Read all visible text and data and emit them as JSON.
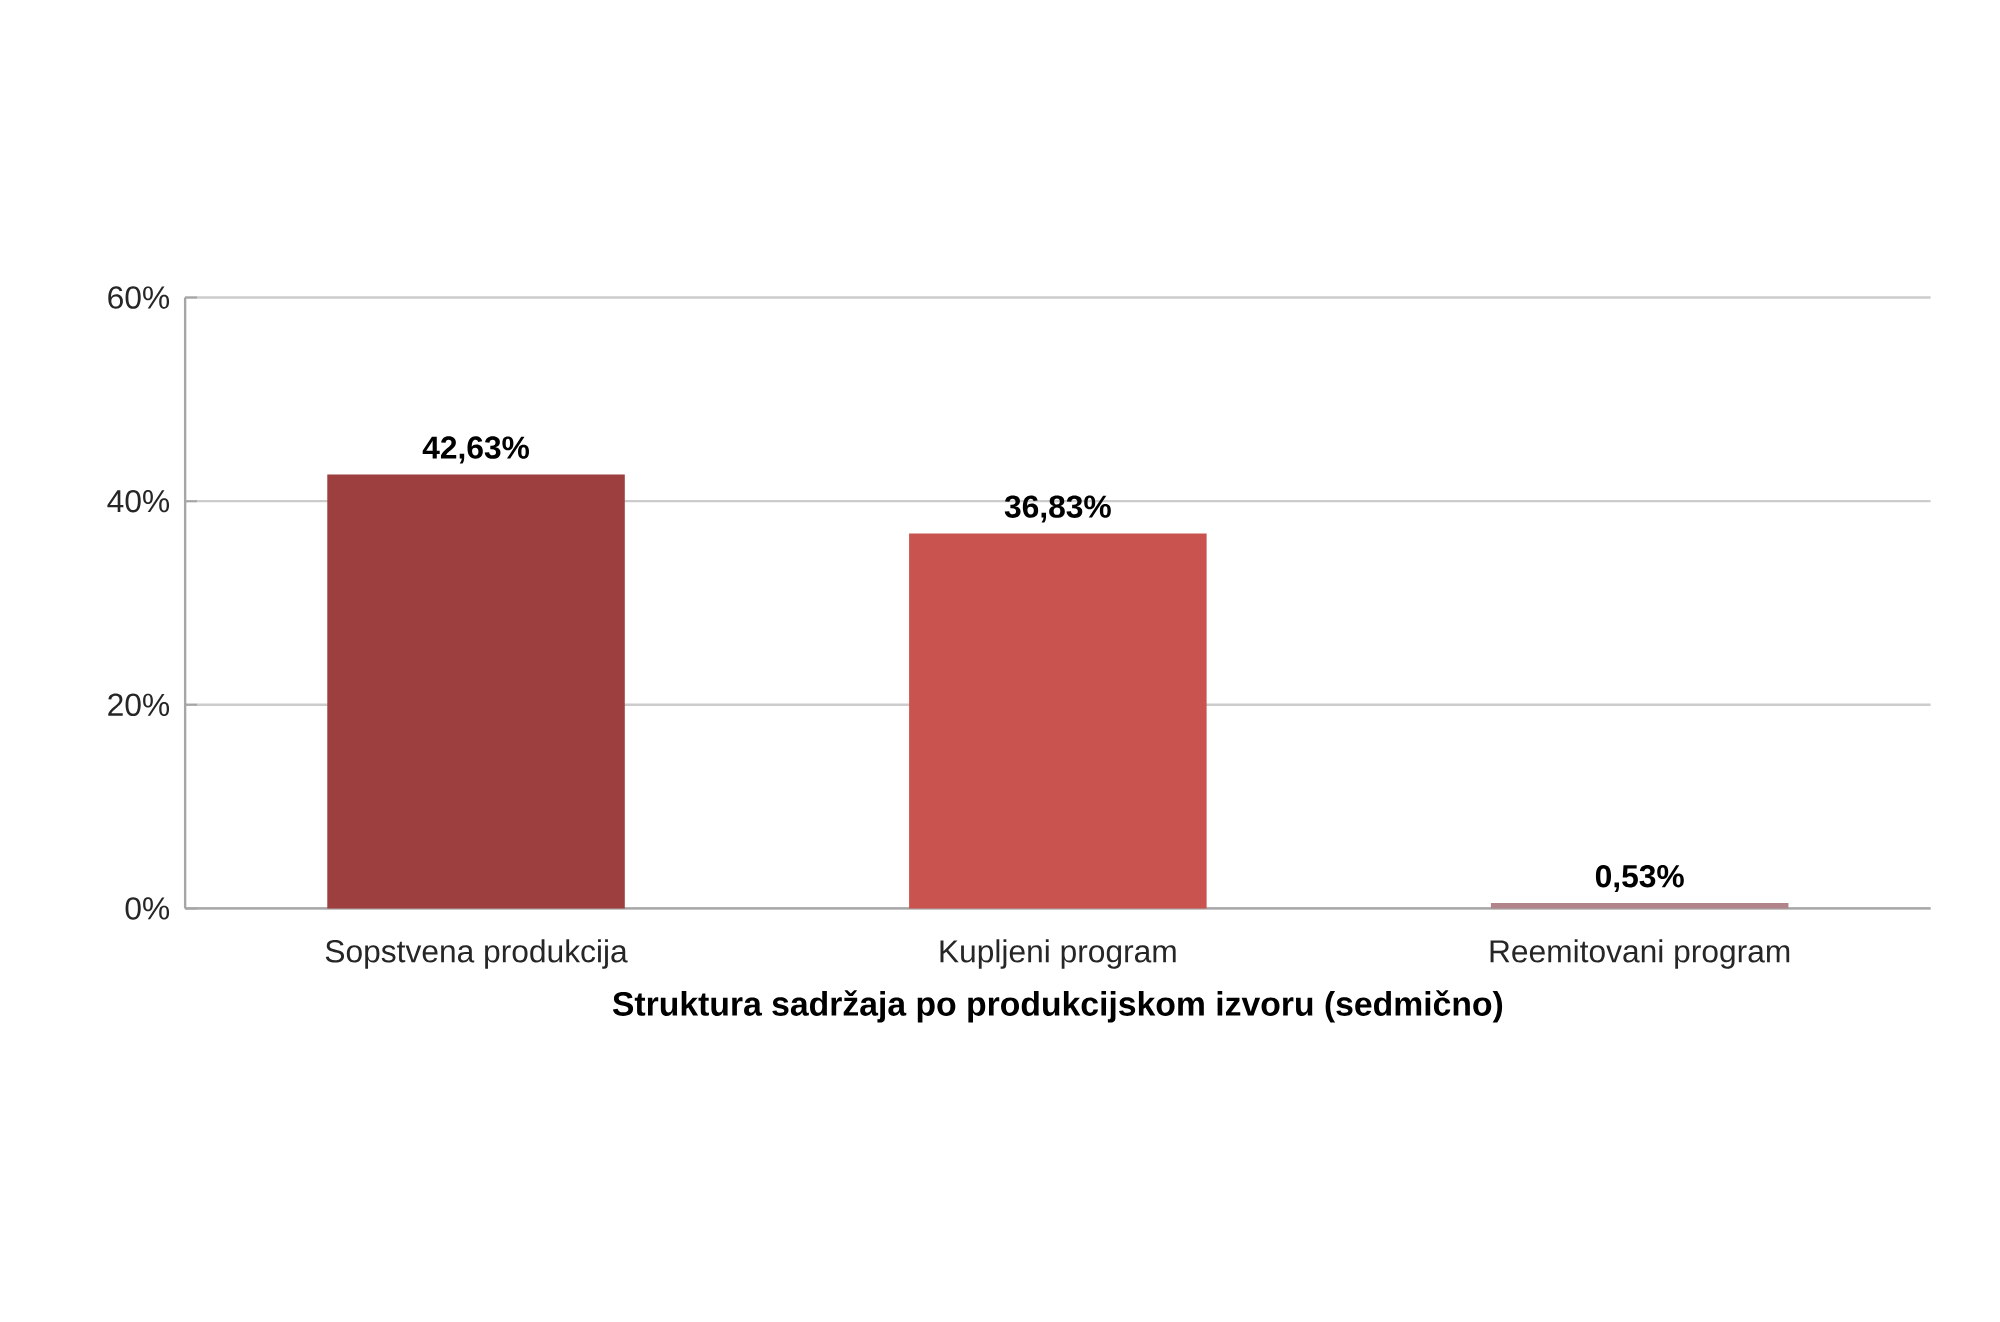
{
  "chart_data": {
    "type": "bar",
    "categories": [
      "Sopstvena produkcija",
      "Kupljeni program",
      "Reemitovani program"
    ],
    "values": [
      42.63,
      36.83,
      0.53
    ],
    "colors": [
      "#9e3f3f",
      "#c9534e",
      "#b0848a"
    ],
    "value_labels": [
      "42,63%",
      "36,83%",
      "0,53%"
    ],
    "xlabel": "Struktura sadržaja po produkcijskom izvoru (sedmično)",
    "ylim": [
      0,
      60
    ],
    "yticks": [
      {
        "value": 0,
        "label": "0%"
      },
      {
        "value": 20,
        "label": "20%"
      },
      {
        "value": 40,
        "label": "40%"
      },
      {
        "value": 60,
        "label": "60%"
      }
    ],
    "grid": "y"
  }
}
